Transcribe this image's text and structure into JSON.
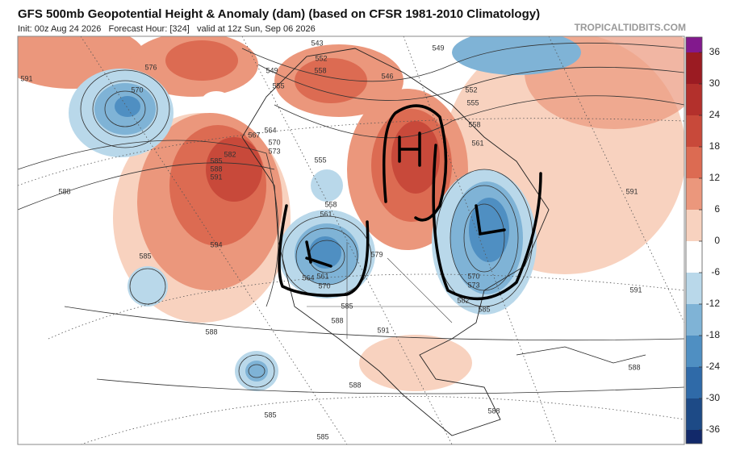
{
  "header": {
    "title": "GFS 500mb Geopotential Height & Anomaly (dam) (based on CFSR 1981-2010 Climatology)",
    "subtitle": "Init: 00z Aug 24 2026   Forecast Hour: [324]   valid at 12z Sun, Sep 06 2026",
    "site": "TROPICALTIDBITS.COM"
  },
  "colorbar": {
    "ticks": [
      36,
      30,
      24,
      18,
      12,
      6,
      0,
      -6,
      -12,
      -18,
      -24,
      -30,
      -36
    ],
    "colors": [
      "#82198d",
      "#9b1b22",
      "#b3302c",
      "#c8493a",
      "#dc6b52",
      "#eb977c",
      "#f8d2bf",
      "#ffffff",
      "#b9d8ea",
      "#7fb3d6",
      "#4f8fc2",
      "#2f6aa8",
      "#1d4a86",
      "#12296a"
    ]
  },
  "map": {
    "contour_labels": [
      "591",
      "576",
      "570",
      "588",
      "585",
      "594",
      "588",
      "585",
      "585",
      "588",
      "591",
      "588",
      "585",
      "555",
      "549",
      "543",
      "552",
      "558",
      "546",
      "549",
      "552",
      "555",
      "558",
      "561",
      "564",
      "567",
      "570",
      "573",
      "585",
      "588",
      "591",
      "582",
      "555",
      "558",
      "561",
      "564",
      "561",
      "570",
      "579",
      "570",
      "573",
      "582",
      "585",
      "591",
      "591",
      "588",
      "588"
    ]
  }
}
